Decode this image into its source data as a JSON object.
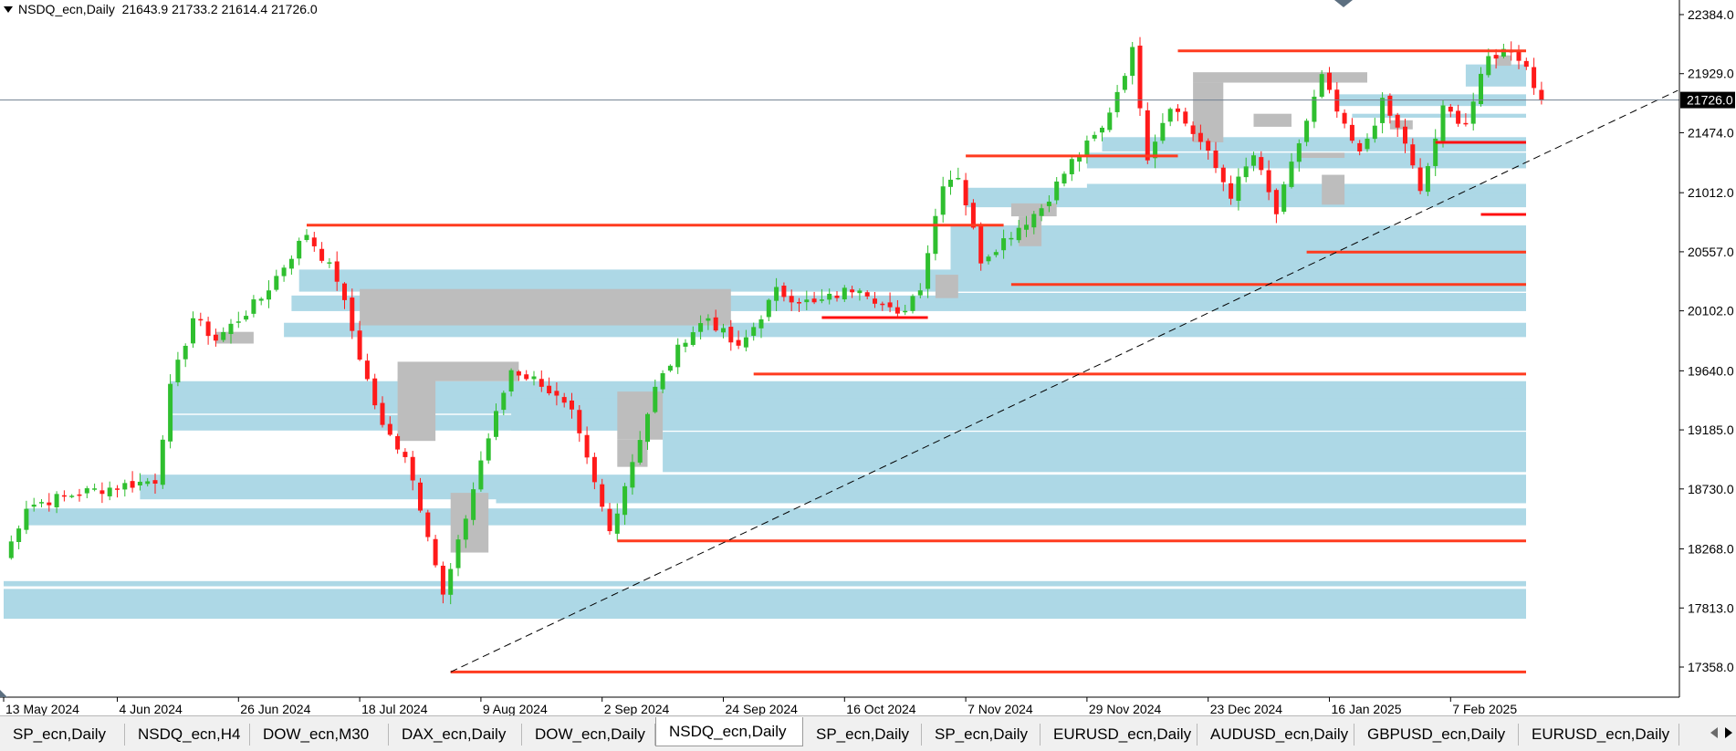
{
  "symbol_info": {
    "label": "NSDQ_ecn,Daily",
    "ohlc": "21643.9 21733.2 21614.4 21726.0"
  },
  "chart_data": {
    "type": "candlestick",
    "symbol": "NSDQ_ecn",
    "timeframe": "Daily",
    "ylim": [
      17150,
      22520
    ],
    "y_ticks": [
      22384.0,
      21929.0,
      21474.0,
      21012.0,
      20557.0,
      20102.0,
      19640.0,
      19185.0,
      18730.0,
      18268.0,
      17813.0,
      17358.0
    ],
    "y_tick_labels": [
      "22384.0",
      "21929.0",
      "21474.0",
      "21012.0",
      "20557.0",
      "20102.0",
      "19640.0",
      "19185.0",
      "18730.0",
      "18268.0",
      "17813.0",
      "17358.0"
    ],
    "x_tick_labels": [
      "13 May 2024",
      "4 Jun 2024",
      "26 Jun 2024",
      "18 Jul 2024",
      "9 Aug 2024",
      "2 Sep 2024",
      "24 Sep 2024",
      "16 Oct 2024",
      "7 Nov 2024",
      "29 Nov 2024",
      "23 Dec 2024",
      "16 Jan 2025",
      "7 Feb 2025"
    ],
    "x_tick_index": [
      0,
      15,
      31,
      47,
      63,
      79,
      95,
      111,
      127,
      143,
      159,
      175,
      191
    ],
    "bar_count": 224,
    "current_price": 21726.0,
    "current_price_label": "21726.0",
    "key_prices": [
      {
        "index": 0,
        "price": 18180
      },
      {
        "index": 3,
        "price": 18600
      },
      {
        "index": 10,
        "price": 18700
      },
      {
        "index": 20,
        "price": 18800
      },
      {
        "index": 22,
        "price": 19500
      },
      {
        "index": 25,
        "price": 20050
      },
      {
        "index": 28,
        "price": 19880
      },
      {
        "index": 34,
        "price": 20200
      },
      {
        "index": 40,
        "price": 20700
      },
      {
        "index": 44,
        "price": 20350
      },
      {
        "index": 47,
        "price": 19750
      },
      {
        "index": 50,
        "price": 19200
      },
      {
        "index": 53,
        "price": 19000
      },
      {
        "index": 56,
        "price": 18400
      },
      {
        "index": 58,
        "price": 17900
      },
      {
        "index": 60,
        "price": 18300
      },
      {
        "index": 63,
        "price": 18950
      },
      {
        "index": 67,
        "price": 19650
      },
      {
        "index": 71,
        "price": 19550
      },
      {
        "index": 75,
        "price": 19300
      },
      {
        "index": 80,
        "price": 18400
      },
      {
        "index": 83,
        "price": 18950
      },
      {
        "index": 86,
        "price": 19500
      },
      {
        "index": 90,
        "price": 19900
      },
      {
        "index": 93,
        "price": 20050
      },
      {
        "index": 97,
        "price": 19800
      },
      {
        "index": 102,
        "price": 20250
      },
      {
        "index": 107,
        "price": 20150
      },
      {
        "index": 113,
        "price": 20300
      },
      {
        "index": 118,
        "price": 20050
      },
      {
        "index": 121,
        "price": 20300
      },
      {
        "index": 124,
        "price": 21100
      },
      {
        "index": 126,
        "price": 21150
      },
      {
        "index": 129,
        "price": 20500
      },
      {
        "index": 133,
        "price": 20700
      },
      {
        "index": 137,
        "price": 20900
      },
      {
        "index": 141,
        "price": 21250
      },
      {
        "index": 145,
        "price": 21500
      },
      {
        "index": 149,
        "price": 22100
      },
      {
        "index": 151,
        "price": 21300
      },
      {
        "index": 154,
        "price": 21700
      },
      {
        "index": 158,
        "price": 21400
      },
      {
        "index": 162,
        "price": 21000
      },
      {
        "index": 165,
        "price": 21300
      },
      {
        "index": 168,
        "price": 20850
      },
      {
        "index": 171,
        "price": 21400
      },
      {
        "index": 174,
        "price": 21900
      },
      {
        "index": 177,
        "price": 21500
      },
      {
        "index": 179,
        "price": 21300
      },
      {
        "index": 182,
        "price": 21700
      },
      {
        "index": 185,
        "price": 21400
      },
      {
        "index": 187,
        "price": 21000
      },
      {
        "index": 190,
        "price": 21650
      },
      {
        "index": 193,
        "price": 21550
      },
      {
        "index": 196,
        "price": 22050
      },
      {
        "index": 199,
        "price": 22130
      },
      {
        "index": 201,
        "price": 21980
      },
      {
        "index": 203,
        "price": 21690
      }
    ],
    "horizontal_levels": [
      {
        "price": 22105,
        "from_index": 155,
        "color": "#ff3b1f"
      },
      {
        "price": 21400,
        "from_index": 189,
        "color": "#ff1010"
      },
      {
        "price": 21295,
        "from_index": 127,
        "to_index": 155,
        "color": "#ff3b1f"
      },
      {
        "price": 20845,
        "from_index": 195,
        "color": "#ff1010"
      },
      {
        "price": 20762,
        "from_index": 40,
        "to_index": 132,
        "color": "#ff3b1f"
      },
      {
        "price": 20555,
        "from_index": 172,
        "color": "#ff3b1f"
      },
      {
        "price": 20305,
        "from_index": 133,
        "color": "#ff3b1f"
      },
      {
        "price": 20050,
        "from_index": 108,
        "to_index": 122,
        "color": "#ff1010"
      },
      {
        "price": 19615,
        "from_index": 99,
        "color": "#ff3b1f"
      },
      {
        "price": 18330,
        "from_index": 81,
        "color": "#ff3b1f"
      },
      {
        "price": 17320,
        "from_index": 59,
        "color": "#ff3b1f"
      }
    ],
    "trendline": {
      "from": {
        "index": 59,
        "price": 17320
      },
      "to": {
        "index": 221,
        "price": 21800
      },
      "style": "dashed"
    },
    "blue_zones": [
      {
        "from_index": 0,
        "price_top": 17960,
        "price_bottom": 17730
      },
      {
        "from_index": 0,
        "price_top": 18020,
        "price_bottom": 17980
      },
      {
        "from_index": 3,
        "price_top": 18580,
        "price_bottom": 18450
      },
      {
        "from_index": 18,
        "price_top": 18840,
        "price_bottom": 18650
      },
      {
        "from_index": 22,
        "price_top": 19560,
        "price_bottom": 19310
      },
      {
        "from_index": 22,
        "price_top": 19300,
        "price_bottom": 19180
      },
      {
        "from_index": 37,
        "price_top": 20010,
        "price_bottom": 19900
      },
      {
        "from_index": 38,
        "price_top": 20220,
        "price_bottom": 20100
      },
      {
        "from_index": 39,
        "price_top": 20420,
        "price_bottom": 20250
      },
      {
        "from_index": 65,
        "price_top": 18770,
        "price_bottom": 18620
      },
      {
        "from_index": 67,
        "price_top": 19430,
        "price_bottom": 19180
      },
      {
        "from_index": 87,
        "price_top": 19170,
        "price_bottom": 18860
      },
      {
        "from_index": 87,
        "price_top": 19280,
        "price_bottom": 19260
      },
      {
        "from_index": 125,
        "price_top": 20760,
        "price_bottom": 20270
      },
      {
        "from_index": 124,
        "price_top": 20240,
        "price_bottom": 20180
      },
      {
        "from_index": 127,
        "price_top": 21050,
        "price_bottom": 20900
      },
      {
        "from_index": 143,
        "price_top": 21080,
        "price_bottom": 20950
      },
      {
        "from_index": 143,
        "price_top": 21320,
        "price_bottom": 21200
      },
      {
        "from_index": 145,
        "price_top": 21440,
        "price_bottom": 21330
      },
      {
        "from_index": 167,
        "price_top": 21010,
        "price_bottom": 20980
      },
      {
        "from_index": 176,
        "price_top": 21770,
        "price_bottom": 21680
      },
      {
        "from_index": 178,
        "price_top": 21620,
        "price_bottom": 21590
      },
      {
        "from_index": 193,
        "price_top": 22000,
        "price_bottom": 21830
      }
    ],
    "gray_zones": [
      {
        "from_index": 28,
        "to_index": 33,
        "price_top": 19940,
        "price_bottom": 19850
      },
      {
        "from_index": 47,
        "to_index": 96,
        "price_top": 20270,
        "price_bottom": 19990
      },
      {
        "from_index": 52,
        "to_index": 68,
        "price_top": 19710,
        "price_bottom": 19560
      },
      {
        "from_index": 52,
        "to_index": 57,
        "price_top": 19580,
        "price_bottom": 19100
      },
      {
        "from_index": 59,
        "to_index": 64,
        "price_top": 18700,
        "price_bottom": 18240
      },
      {
        "from_index": 81,
        "to_index": 87,
        "price_top": 19480,
        "price_bottom": 19110
      },
      {
        "from_index": 81,
        "to_index": 85,
        "price_top": 19110,
        "price_bottom": 18900
      },
      {
        "from_index": 123,
        "to_index": 126,
        "price_top": 20380,
        "price_bottom": 20200
      },
      {
        "from_index": 133,
        "to_index": 139,
        "price_top": 20930,
        "price_bottom": 20830
      },
      {
        "from_index": 134,
        "to_index": 137,
        "price_top": 20830,
        "price_bottom": 20600
      },
      {
        "from_index": 157,
        "to_index": 180,
        "price_top": 21940,
        "price_bottom": 21860
      },
      {
        "from_index": 157,
        "to_index": 161,
        "price_top": 21860,
        "price_bottom": 21400
      },
      {
        "from_index": 165,
        "to_index": 170,
        "price_top": 21620,
        "price_bottom": 21520
      },
      {
        "from_index": 171,
        "to_index": 177,
        "price_top": 21320,
        "price_bottom": 21280
      },
      {
        "from_index": 174,
        "to_index": 177,
        "price_top": 21150,
        "price_bottom": 20920
      },
      {
        "from_index": 183,
        "to_index": 186,
        "price_top": 21570,
        "price_bottom": 21500
      },
      {
        "from_index": 197,
        "to_index": 199,
        "price_top": 22070,
        "price_bottom": 21990
      }
    ]
  },
  "tabs": [
    {
      "label": "SP_ecn,Daily",
      "active": false
    },
    {
      "label": "NSDQ_ecn,H4",
      "active": false
    },
    {
      "label": "DOW_ecn,M30",
      "active": false
    },
    {
      "label": "DAX_ecn,Daily",
      "active": false
    },
    {
      "label": "DOW_ecn,Daily",
      "active": false
    },
    {
      "label": "NSDQ_ecn,Daily",
      "active": true
    },
    {
      "label": "SP_ecn,Daily",
      "active": false
    },
    {
      "label": "SP_ecn,Daily",
      "active": false
    },
    {
      "label": "EURUSD_ecn,Daily",
      "active": false
    },
    {
      "label": "AUDUSD_ecn,Daily",
      "active": false
    },
    {
      "label": "GBPUSD_ecn,Daily",
      "active": false
    },
    {
      "label": "EURUSD_ecn,Daily",
      "active": false
    }
  ],
  "colors": {
    "bull": "#2fbf2f",
    "bear": "#ff1a1a",
    "blue_zone": "#add8e6",
    "gray_zone": "#bdbdbd",
    "level_line": "#ff3b1f",
    "price_line": "#708090",
    "axis": "#000000"
  },
  "icons": {
    "scroll_left": "triangle-left",
    "scroll_right": "triangle-right",
    "menu": "triangle-down"
  }
}
